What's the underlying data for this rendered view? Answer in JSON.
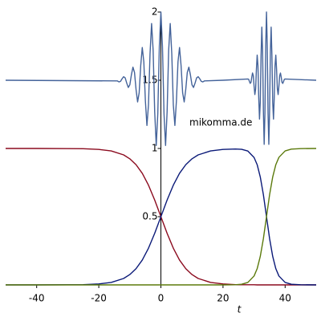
{
  "chart_data": {
    "type": "line",
    "annotation": "mikomma.de",
    "x_label": "t",
    "xlim": [
      -50,
      50
    ],
    "ylim": [
      0,
      2
    ],
    "xticks": [
      -40,
      -20,
      0,
      20,
      40
    ],
    "yticks": [
      0.5,
      1,
      1.5,
      2
    ],
    "series": [
      {
        "color": "#44639a",
        "x": [
          -50,
          -14,
          -13.5,
          -13,
          -12.5,
          -12,
          -11.5,
          -11,
          -10.5,
          -10,
          -9.5,
          -9,
          -8.5,
          -8,
          -7.5,
          -7,
          -6.5,
          -6,
          -5.5,
          -5,
          -4.5,
          -4,
          -3.5,
          -3,
          -2.5,
          -2,
          -1.5,
          -1,
          -0.5,
          0,
          0.5,
          1,
          1.5,
          2,
          2.5,
          3,
          3.5,
          4,
          4.5,
          5,
          5.5,
          6,
          6.5,
          7,
          7.5,
          8,
          8.5,
          9,
          9.5,
          10,
          10.5,
          11,
          11.5,
          12,
          12.5,
          13,
          13.5,
          14,
          20,
          28,
          28.25,
          28.5,
          28.75,
          29,
          29.25,
          29.5,
          29.75,
          30,
          30.25,
          30.5,
          30.75,
          31,
          31.25,
          31.5,
          31.75,
          32,
          32.25,
          32.5,
          32.75,
          33,
          33.25,
          33.5,
          33.75,
          34,
          34.25,
          34.5,
          34.75,
          35,
          35.25,
          35.5,
          35.75,
          36,
          36.25,
          36.5,
          36.75,
          37,
          37.25,
          37.5,
          37.75,
          38,
          38.25,
          38.5,
          38.75,
          39,
          39.25,
          39.5,
          39.75,
          40,
          50
        ],
        "values": [
          1.5,
          1.495,
          1.488,
          1.492,
          1.511,
          1.526,
          1.517,
          1.479,
          1.447,
          1.467,
          1.54,
          1.596,
          1.558,
          1.432,
          1.341,
          1.408,
          1.606,
          1.74,
          1.635,
          1.35,
          1.169,
          1.319,
          1.695,
          1.916,
          1.72,
          1.269,
          1.022,
          1.255,
          1.749,
          2,
          1.749,
          1.255,
          1.022,
          1.269,
          1.72,
          1.916,
          1.695,
          1.319,
          1.169,
          1.35,
          1.635,
          1.74,
          1.606,
          1.408,
          1.341,
          1.432,
          1.558,
          1.596,
          1.54,
          1.467,
          1.447,
          1.479,
          1.517,
          1.526,
          1.511,
          1.492,
          1.488,
          1.495,
          1.5,
          1.509,
          1.507,
          1.491,
          1.477,
          1.484,
          1.521,
          1.553,
          1.534,
          1.458,
          1.395,
          1.436,
          1.578,
          1.684,
          1.608,
          1.375,
          1.215,
          1.339,
          1.678,
          1.889,
          1.71,
          1.276,
          1.03,
          1.257,
          1.749,
          2,
          1.749,
          1.257,
          1.03,
          1.276,
          1.71,
          1.889,
          1.678,
          1.339,
          1.215,
          1.375,
          1.608,
          1.684,
          1.578,
          1.436,
          1.395,
          1.458,
          1.534,
          1.553,
          1.521,
          1.484,
          1.477,
          1.491,
          1.507,
          1.509,
          1.5
        ]
      },
      {
        "color": "#8b0a1e",
        "x": [
          -50,
          -40,
          -30,
          -25,
          -20,
          -16,
          -12,
          -10,
          -8,
          -6,
          -4,
          -2,
          0,
          2,
          4,
          6,
          8,
          10,
          12,
          16,
          20,
          24,
          26,
          28,
          30,
          31,
          32,
          33,
          34,
          35,
          36,
          37,
          38,
          40,
          42,
          45,
          50
        ],
        "values": [
          1,
          1,
          0.999,
          0.998,
          0.993,
          0.982,
          0.953,
          0.924,
          0.881,
          0.818,
          0.731,
          0.622,
          0.5,
          0.378,
          0.269,
          0.182,
          0.119,
          0.076,
          0.047,
          0.018,
          0.007,
          0.002,
          0.001,
          0.001,
          0.001,
          0,
          0,
          0,
          0,
          0,
          0,
          0,
          0,
          0,
          0,
          0,
          0
        ]
      },
      {
        "color": "#0b1a78",
        "x": [
          -50,
          -40,
          -30,
          -25,
          -20,
          -16,
          -12,
          -10,
          -8,
          -6,
          -4,
          -2,
          0,
          2,
          4,
          6,
          8,
          10,
          12,
          16,
          20,
          24,
          26,
          28,
          30,
          31,
          32,
          33,
          34,
          35,
          36,
          37,
          38,
          40,
          42,
          45,
          50
        ],
        "values": [
          0,
          0,
          0.001,
          0.002,
          0.007,
          0.018,
          0.047,
          0.076,
          0.119,
          0.182,
          0.269,
          0.378,
          0.5,
          0.622,
          0.731,
          0.818,
          0.881,
          0.924,
          0.953,
          0.982,
          0.993,
          0.996,
          0.994,
          0.981,
          0.934,
          0.881,
          0.791,
          0.661,
          0.5,
          0.339,
          0.209,
          0.119,
          0.065,
          0.018,
          0.005,
          0.001,
          0
        ]
      },
      {
        "color": "#5b7a0c",
        "x": [
          -50,
          -40,
          -30,
          -25,
          -20,
          -16,
          -12,
          -10,
          -8,
          -6,
          -4,
          -2,
          0,
          2,
          4,
          6,
          8,
          10,
          12,
          16,
          20,
          24,
          26,
          28,
          30,
          31,
          32,
          33,
          34,
          35,
          36,
          37,
          38,
          40,
          42,
          45,
          50
        ],
        "values": [
          0,
          0,
          0,
          0,
          0,
          0,
          0,
          0,
          0,
          0,
          0,
          0,
          0,
          0,
          0,
          0,
          0,
          0,
          0,
          0,
          0,
          0.001,
          0.005,
          0.018,
          0.065,
          0.119,
          0.209,
          0.339,
          0.5,
          0.661,
          0.791,
          0.881,
          0.935,
          0.982,
          0.995,
          0.999,
          1
        ]
      }
    ]
  }
}
